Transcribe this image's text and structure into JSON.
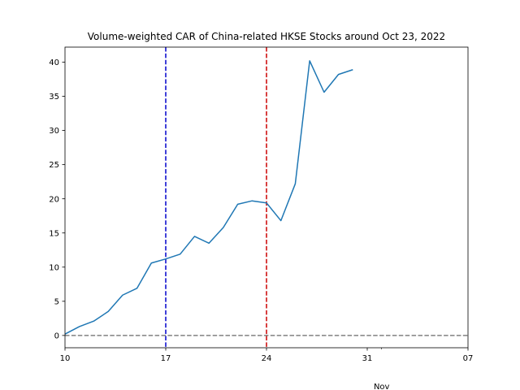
{
  "chart_data": {
    "type": "line",
    "title": "Volume-weighted CAR of China-related HKSE Stocks around Oct 23, 2022",
    "xlabel": "",
    "ylabel": "",
    "xlim": [
      "2022-10-10",
      "2022-11-07"
    ],
    "ylim": [
      -1.8,
      42.2
    ],
    "x_ticks": [
      {
        "date": "2022-10-10",
        "label": "10"
      },
      {
        "date": "2022-10-17",
        "label": "17"
      },
      {
        "date": "2022-10-24",
        "label": "24"
      },
      {
        "date": "2022-10-31",
        "label": "31"
      },
      {
        "date": "2022-11-07",
        "label": "07"
      }
    ],
    "x_minor_ticks": [
      "2022-11-01"
    ],
    "x_secondary_label": {
      "date": "2022-11-01",
      "label": "Nov"
    },
    "y_ticks": [
      0,
      5,
      10,
      15,
      20,
      25,
      30,
      35,
      40
    ],
    "grid": false,
    "series": [
      {
        "name": "",
        "color": "#1f77b4",
        "points": [
          {
            "x": "2022-10-10",
            "y": 0.2
          },
          {
            "x": "2022-10-11",
            "y": 1.3
          },
          {
            "x": "2022-10-12",
            "y": 2.1
          },
          {
            "x": "2022-10-13",
            "y": 3.5
          },
          {
            "x": "2022-10-14",
            "y": 5.9
          },
          {
            "x": "2022-10-15",
            "y": 6.9
          },
          {
            "x": "2022-10-16",
            "y": 10.6
          },
          {
            "x": "2022-10-17",
            "y": 11.2
          },
          {
            "x": "2022-10-18",
            "y": 11.9
          },
          {
            "x": "2022-10-19",
            "y": 14.5
          },
          {
            "x": "2022-10-20",
            "y": 13.5
          },
          {
            "x": "2022-10-21",
            "y": 15.8
          },
          {
            "x": "2022-10-22",
            "y": 19.2
          },
          {
            "x": "2022-10-23",
            "y": 19.7
          },
          {
            "x": "2022-10-24",
            "y": 19.4
          },
          {
            "x": "2022-10-25",
            "y": 16.8
          },
          {
            "x": "2022-10-26",
            "y": 22.2
          },
          {
            "x": "2022-10-27",
            "y": 40.2
          },
          {
            "x": "2022-10-28",
            "y": 35.6
          },
          {
            "x": "2022-10-29",
            "y": 38.2
          },
          {
            "x": "2022-10-30",
            "y": 38.9
          }
        ]
      }
    ],
    "vlines": [
      {
        "x": "2022-10-17",
        "color": "#0000cc",
        "style": "dashed"
      },
      {
        "x": "2022-10-24",
        "color": "#cc0000",
        "style": "dashed"
      }
    ],
    "hlines": [
      {
        "y": 0,
        "color": "#808080",
        "style": "dashed"
      }
    ]
  }
}
